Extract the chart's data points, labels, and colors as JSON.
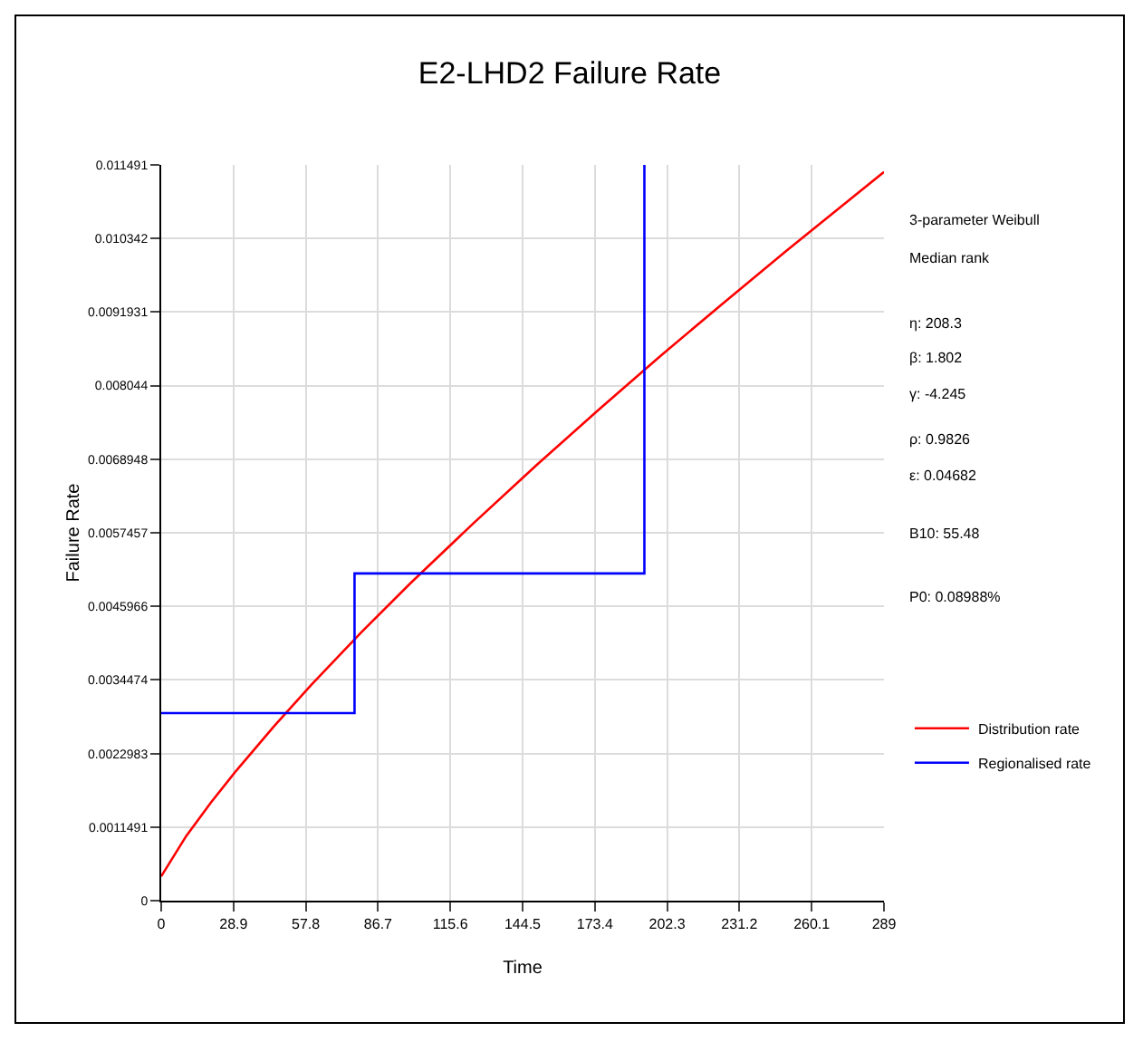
{
  "chart_data": {
    "type": "line",
    "title": "E2-LHD2 Failure Rate",
    "xlabel": "Time",
    "ylabel": "Failure Rate",
    "series": [
      {
        "name": "Distribution rate",
        "color": "#ff0000",
        "x": [
          0,
          10,
          20,
          30,
          45,
          60,
          80,
          100,
          125,
          150,
          175,
          200,
          225,
          250,
          275,
          289
        ],
        "values": [
          0.00038,
          0.00101,
          0.00154,
          0.00203,
          0.00272,
          0.00337,
          0.00419,
          0.00497,
          0.0059,
          0.0068,
          0.00767,
          0.00852,
          0.00934,
          0.01015,
          0.01094,
          0.01138
        ]
      },
      {
        "name": "Regionalised rate",
        "type": "step",
        "color": "#0000ff",
        "x": [
          0,
          77.3,
          193.2
        ],
        "values": [
          0.00293,
          0.00511,
          0.011491
        ]
      }
    ],
    "xlim": [
      0,
      289
    ],
    "xticks": [
      0,
      28.9,
      57.8,
      86.7,
      115.6,
      144.5,
      173.4,
      202.3,
      231.2,
      260.1,
      289
    ],
    "ylim": [
      0,
      0.011491
    ],
    "yticks": [
      0,
      0.0011491,
      0.0022983,
      0.0034474,
      0.0045966,
      0.0057457,
      0.0068948,
      0.008044,
      0.0091931,
      0.010342,
      0.011491
    ],
    "grid": true,
    "legend": "right",
    "marker": "none",
    "line_style": "solid",
    "annotations": [
      "3-parameter Weibull",
      "Median rank",
      "η: 208.3",
      "β: 1.802",
      "γ: -4.245",
      "ρ: 0.9826",
      "ε: 0.04682",
      "B10: 55.48",
      "P0: 0.08988%"
    ]
  }
}
